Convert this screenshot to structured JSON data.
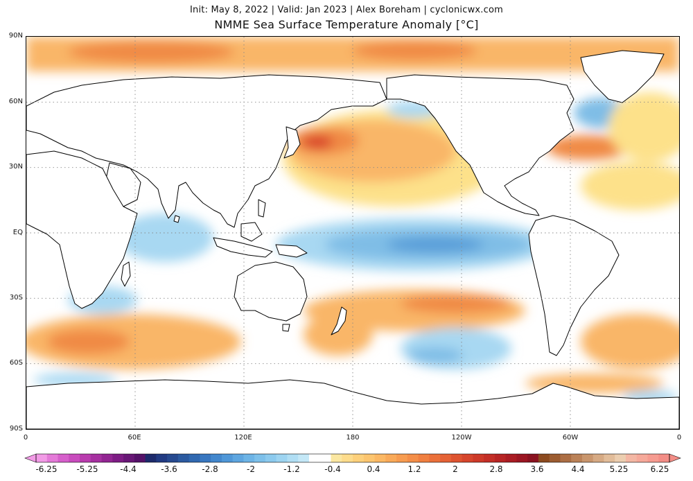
{
  "header": {
    "subtitle": "Init: May 8, 2022 | Valid: Jan 2023 | Alex Boreham | cyclonicwx.com",
    "title": "NMME Sea Surface Temperature Anomaly [°C]"
  },
  "map": {
    "projection": "equirectangular, centered on 180",
    "lat_labels": [
      "90N",
      "60N",
      "30N",
      "EQ",
      "30S",
      "60S",
      "90S"
    ],
    "lon_labels": [
      "0",
      "60E",
      "120E",
      "180",
      "120W",
      "60W",
      "0"
    ],
    "gridlines": true,
    "colors": {
      "land": "#ffffff",
      "coast": "#000000",
      "neutral_ocean": "#ffffff",
      "warm_light": "#fde18a",
      "warm_mid": "#f9b667",
      "warm_strong": "#f08a44",
      "warm_max": "#d9432b",
      "cool_light": "#a8d8f2",
      "cool_mid": "#7fbde6",
      "cool_strong": "#5a9fd9",
      "polar_extreme": "#e87ad8"
    }
  },
  "colorbar": {
    "labels": [
      "-6.25",
      "-5.25",
      "-4.4",
      "-3.6",
      "-2.8",
      "-2",
      "-1.2",
      "-0.4",
      "0.4",
      "1.2",
      "2",
      "2.8",
      "3.6",
      "4.4",
      "5.25",
      "6.25"
    ],
    "colors": [
      "#f29be6",
      "#e47ad8",
      "#d65fcb",
      "#c84bbd",
      "#b93cae",
      "#a630a0",
      "#922592",
      "#7d1c84",
      "#681776",
      "#541268",
      "#1d2a6b",
      "#213a82",
      "#26498f",
      "#2b5aa0",
      "#3068b0",
      "#3877c0",
      "#4287cd",
      "#4f97d8",
      "#5ea6e0",
      "#6db4e6",
      "#7dc0ea",
      "#8ccaee",
      "#9dd4f1",
      "#b0def4",
      "#c4e8f7",
      "#ffffff",
      "#ffffff",
      "#fbe7a1",
      "#fddc8c",
      "#fdd07b",
      "#fcc56f",
      "#fbb864",
      "#f9aa59",
      "#f79c50",
      "#f48e48",
      "#f07f40",
      "#eb703a",
      "#e56235",
      "#de5330",
      "#d6452c",
      "#cd3928",
      "#c32e26",
      "#b72424",
      "#aa1c23",
      "#9b1622",
      "#8a1220",
      "#8c4a1f",
      "#9c5c30",
      "#ac6e44",
      "#bb8258",
      "#c9966d",
      "#d6aa84",
      "#e2bd9a",
      "#ecceb0",
      "#f4b7a4",
      "#f6a99a",
      "#f69b90",
      "#f38d86"
    ]
  }
}
